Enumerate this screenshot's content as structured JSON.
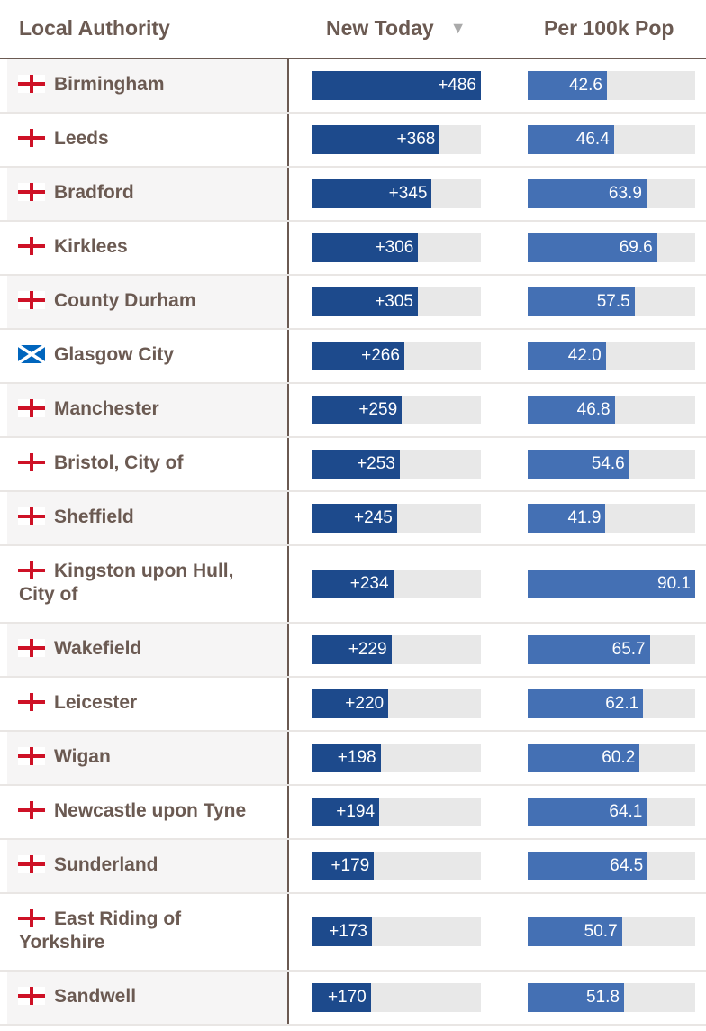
{
  "header": {
    "authority_label": "Local Authority",
    "new_today_label": "New Today",
    "sort_arrow": "▼",
    "per_100k_label": "Per 100k Pop"
  },
  "colors": {
    "new_today_bar": "#1d4a8c",
    "per_100k_bar": "#4470b4",
    "track": "#e8e8e8",
    "text": "#6b5a52",
    "england_cross": "#ce1126",
    "scotland_blue": "#0065bd"
  },
  "chart_data": {
    "type": "table",
    "columns": [
      "Local Authority",
      "New Today",
      "Per 100k Pop"
    ],
    "new_today_scale_max": 486,
    "per_100k_scale_max": 90.1,
    "rows": [
      {
        "flag": "england-flag",
        "name": "Birmingham",
        "new_today": 486,
        "new_today_label": "+486",
        "per_100k": 42.6,
        "per_100k_label": "42.6"
      },
      {
        "flag": "england-flag",
        "name": "Leeds",
        "new_today": 368,
        "new_today_label": "+368",
        "per_100k": 46.4,
        "per_100k_label": "46.4"
      },
      {
        "flag": "england-flag",
        "name": "Bradford",
        "new_today": 345,
        "new_today_label": "+345",
        "per_100k": 63.9,
        "per_100k_label": "63.9"
      },
      {
        "flag": "england-flag",
        "name": "Kirklees",
        "new_today": 306,
        "new_today_label": "+306",
        "per_100k": 69.6,
        "per_100k_label": "69.6"
      },
      {
        "flag": "england-flag",
        "name": "County Durham",
        "new_today": 305,
        "new_today_label": "+305",
        "per_100k": 57.5,
        "per_100k_label": "57.5"
      },
      {
        "flag": "scotland-flag",
        "name": "Glasgow City",
        "new_today": 266,
        "new_today_label": "+266",
        "per_100k": 42.0,
        "per_100k_label": "42.0"
      },
      {
        "flag": "england-flag",
        "name": "Manchester",
        "new_today": 259,
        "new_today_label": "+259",
        "per_100k": 46.8,
        "per_100k_label": "46.8"
      },
      {
        "flag": "england-flag",
        "name": "Bristol, City of",
        "new_today": 253,
        "new_today_label": "+253",
        "per_100k": 54.6,
        "per_100k_label": "54.6"
      },
      {
        "flag": "england-flag",
        "name": "Sheffield",
        "new_today": 245,
        "new_today_label": "+245",
        "per_100k": 41.9,
        "per_100k_label": "41.9"
      },
      {
        "flag": "england-flag",
        "name": "Kingston upon Hull, City of",
        "new_today": 234,
        "new_today_label": "+234",
        "per_100k": 90.1,
        "per_100k_label": "90.1",
        "wrap": true
      },
      {
        "flag": "england-flag",
        "name": "Wakefield",
        "new_today": 229,
        "new_today_label": "+229",
        "per_100k": 65.7,
        "per_100k_label": "65.7"
      },
      {
        "flag": "england-flag",
        "name": "Leicester",
        "new_today": 220,
        "new_today_label": "+220",
        "per_100k": 62.1,
        "per_100k_label": "62.1"
      },
      {
        "flag": "england-flag",
        "name": "Wigan",
        "new_today": 198,
        "new_today_label": "+198",
        "per_100k": 60.2,
        "per_100k_label": "60.2"
      },
      {
        "flag": "england-flag",
        "name": "Newcastle upon Tyne",
        "new_today": 194,
        "new_today_label": "+194",
        "per_100k": 64.1,
        "per_100k_label": "64.1"
      },
      {
        "flag": "england-flag",
        "name": "Sunderland",
        "new_today": 179,
        "new_today_label": "+179",
        "per_100k": 64.5,
        "per_100k_label": "64.5"
      },
      {
        "flag": "england-flag",
        "name": "East Riding of Yorkshire",
        "new_today": 173,
        "new_today_label": "+173",
        "per_100k": 50.7,
        "per_100k_label": "50.7",
        "wrap": true
      },
      {
        "flag": "england-flag",
        "name": "Sandwell",
        "new_today": 170,
        "new_today_label": "+170",
        "per_100k": 51.8,
        "per_100k_label": "51.8"
      }
    ]
  }
}
